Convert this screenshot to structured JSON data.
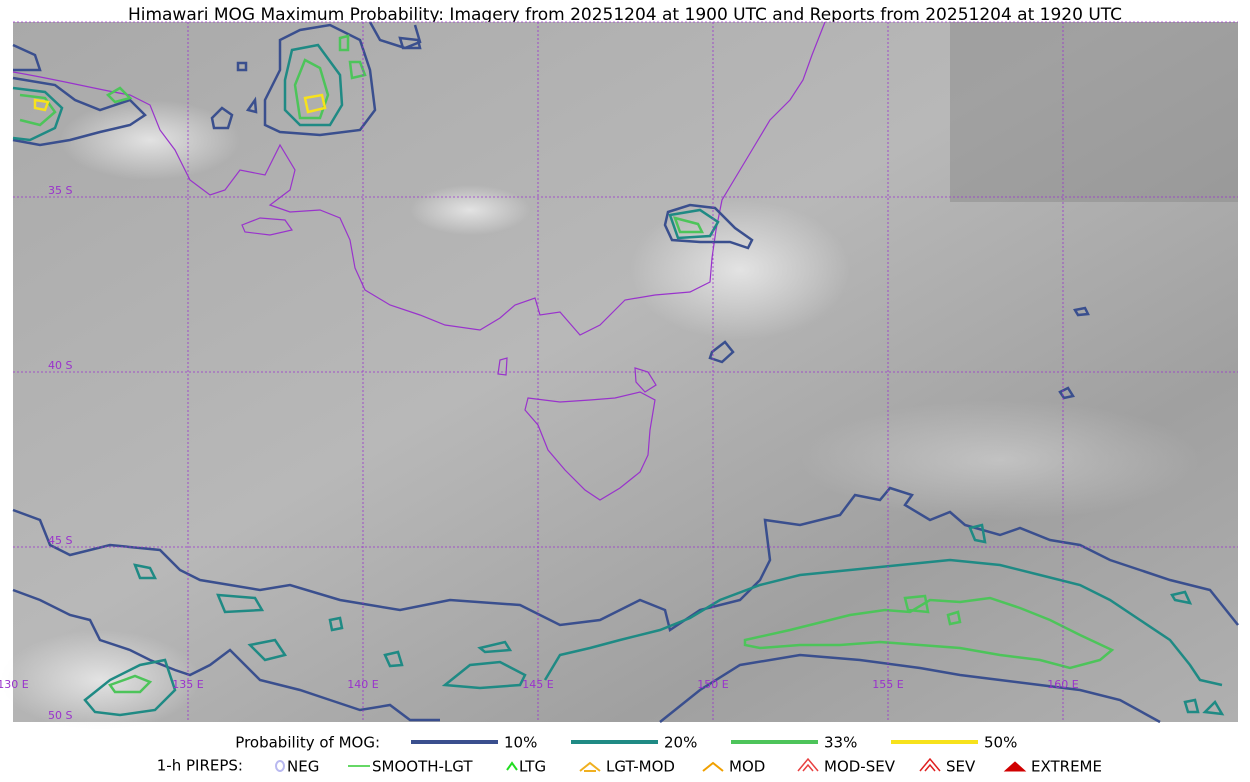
{
  "title": "Himawari MOG Maximum Probability: Imagery from 20251204 at 1900 UTC and Reports from 20251204 at 1920 UTC",
  "map": {
    "lat_labels": [
      "35 S",
      "40 S",
      "45 S",
      "50 S"
    ],
    "lon_labels": [
      "130 E",
      "135 E",
      "140 E",
      "145 E",
      "150 E",
      "155 E",
      "160 E"
    ]
  },
  "legend": {
    "probability": {
      "label": "Probability of MOG:",
      "items": [
        {
          "label": "10%",
          "color": "#3a4f8e"
        },
        {
          "label": "20%",
          "color": "#1f8a84"
        },
        {
          "label": "33%",
          "color": "#4dc45a"
        },
        {
          "label": "50%",
          "color": "#f7e21c"
        }
      ]
    },
    "pireps": {
      "label": "1-h PIREPS:",
      "items": [
        {
          "label": "NEG",
          "color": "#b9b9f0"
        },
        {
          "label": "SMOOTH-LGT",
          "color": "#33cc33"
        },
        {
          "label": "LTG",
          "color": "#22dd22"
        },
        {
          "label": "LGT-MOD",
          "color": "#f0b020"
        },
        {
          "label": "MOD",
          "color": "#f0a000"
        },
        {
          "label": "MOD-SEV",
          "color": "#e84040"
        },
        {
          "label": "SEV",
          "color": "#e02020"
        },
        {
          "label": "EXTREME",
          "color": "#d00000"
        }
      ]
    }
  }
}
